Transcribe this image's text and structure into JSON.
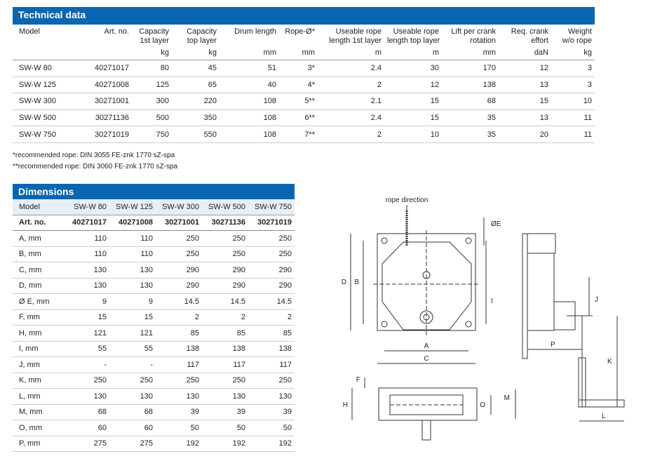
{
  "technical": {
    "title": "Technical data",
    "header": [
      {
        "lines": [
          "Model"
        ]
      },
      {
        "lines": [
          "Art. no."
        ]
      },
      {
        "lines": [
          "Capacity",
          "1st layer"
        ],
        "unit": "kg"
      },
      {
        "lines": [
          "Capacity",
          "top layer"
        ],
        "unit": "kg"
      },
      {
        "lines": [
          "Drum length"
        ],
        "unit": "mm"
      },
      {
        "lines": [
          "Rope-Ø*"
        ],
        "unit": "mm"
      },
      {
        "lines": [
          "Useable rope",
          "length 1st layer"
        ],
        "unit": "m"
      },
      {
        "lines": [
          "Useable rope",
          "length top layer"
        ],
        "unit": "m"
      },
      {
        "lines": [
          "Lift per crank",
          "rotation"
        ],
        "unit": "mm"
      },
      {
        "lines": [
          "Req. crank",
          "effort"
        ],
        "unit": "daN"
      },
      {
        "lines": [
          "Weight",
          "w/o rope"
        ],
        "unit": "kg"
      }
    ],
    "rows": [
      [
        "SW-W 80",
        "40271017",
        "80",
        "45",
        "51",
        "3*",
        "2.4",
        "30",
        "170",
        "12",
        "3"
      ],
      [
        "SW-W 125",
        "40271008",
        "125",
        "65",
        "40",
        "4*",
        "2",
        "12",
        "138",
        "13",
        "3"
      ],
      [
        "SW-W 300",
        "30271001",
        "300",
        "220",
        "108",
        "5**",
        "2.1",
        "15",
        "68",
        "15",
        "10"
      ],
      [
        "SW-W 500",
        "30271136",
        "500",
        "350",
        "108",
        "6**",
        "2.4",
        "15",
        "35",
        "13",
        "11"
      ],
      [
        "SW-W 750",
        "30271019",
        "750",
        "550",
        "108",
        "7**",
        "2",
        "10",
        "35",
        "20",
        "11"
      ]
    ],
    "footnotes": [
      "*recommended rope:  DIN 3055 FE-znk 1770 sZ-spa",
      "**recommended rope: DIN 3060 FE-znk 1770 sZ-spa"
    ]
  },
  "dimensions": {
    "title": "Dimensions",
    "header": [
      "Model",
      "SW-W 80",
      "SW-W 125",
      "SW-W 300",
      "SW-W 500",
      "SW-W 750"
    ],
    "rows": [
      [
        "Art. no.",
        "40271017",
        "40271008",
        "30271001",
        "30271136",
        "30271019"
      ],
      [
        "A, mm",
        "110",
        "110",
        "250",
        "250",
        "250"
      ],
      [
        "B, mm",
        "110",
        "110",
        "250",
        "250",
        "250"
      ],
      [
        "C, mm",
        "130",
        "130",
        "290",
        "290",
        "290"
      ],
      [
        "D, mm",
        "130",
        "130",
        "290",
        "290",
        "290"
      ],
      [
        "Ø E, mm",
        "9",
        "9",
        "14.5",
        "14.5",
        "14.5"
      ],
      [
        "F, mm",
        "15",
        "15",
        "2",
        "2",
        "2"
      ],
      [
        "H, mm",
        "121",
        "121",
        "85",
        "85",
        "85"
      ],
      [
        "I, mm",
        "55",
        "55",
        "138",
        "138",
        "138"
      ],
      [
        "J, mm",
        "-",
        "-",
        "117",
        "117",
        "117"
      ],
      [
        "K, mm",
        "250",
        "250",
        "250",
        "250",
        "250"
      ],
      [
        "L, mm",
        "130",
        "130",
        "130",
        "130",
        "130"
      ],
      [
        "M, mm",
        "68",
        "68",
        "39",
        "39",
        "39"
      ],
      [
        "O, mm",
        "60",
        "60",
        "50",
        "50",
        "50"
      ],
      [
        "P, mm",
        "275",
        "275",
        "192",
        "192",
        "192"
      ]
    ]
  },
  "drawing": {
    "labels": {
      "rope": "rope direction",
      "E": "ØE",
      "D": "D",
      "B": "B",
      "I": "I",
      "A": "A",
      "C": "C",
      "J": "J",
      "P": "P",
      "K": "K",
      "L": "L",
      "F": "F",
      "H": "H",
      "O": "O",
      "M": "M"
    }
  }
}
